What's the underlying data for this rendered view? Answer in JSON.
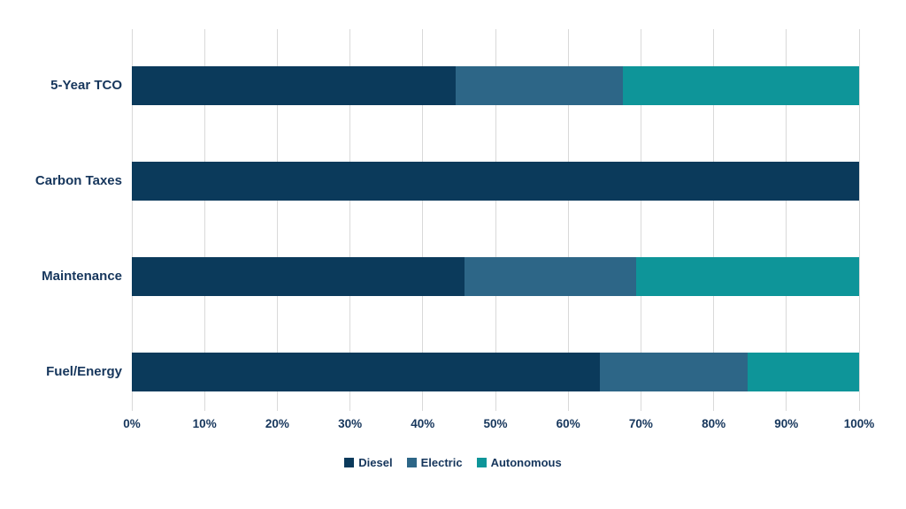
{
  "page": {
    "background": "#FFFFFF"
  },
  "chart_data": {
    "type": "bar",
    "orientation": "horizontal",
    "stacked": true,
    "percent_stacked": true,
    "title": "",
    "xlabel": "",
    "ylabel": "",
    "categories": [
      "5-Year TCO",
      "Carbon Taxes",
      "Maintenance",
      "Fuel/Energy"
    ],
    "series": [
      {
        "name": "Diesel",
        "color": "#0B3A5B",
        "values": [
          44.5,
          100,
          45.7,
          64.4
        ]
      },
      {
        "name": "Electric",
        "color": "#2D6687",
        "values": [
          23.0,
          0,
          23.6,
          20.3
        ]
      },
      {
        "name": "Autonomous",
        "color": "#0E9599",
        "values": [
          32.5,
          0,
          30.7,
          15.3
        ]
      }
    ],
    "x_axis": {
      "min": 0,
      "max": 100,
      "tick_step": 10,
      "ticks": [
        "0%",
        "10%",
        "20%",
        "30%",
        "40%",
        "50%",
        "60%",
        "70%",
        "80%",
        "90%",
        "100%"
      ]
    },
    "grid": true,
    "gridline_color": "#D9D9D9",
    "text_color": "#16365C",
    "legend": {
      "position": "bottom",
      "entries": [
        "Diesel",
        "Electric",
        "Autonomous"
      ]
    }
  }
}
